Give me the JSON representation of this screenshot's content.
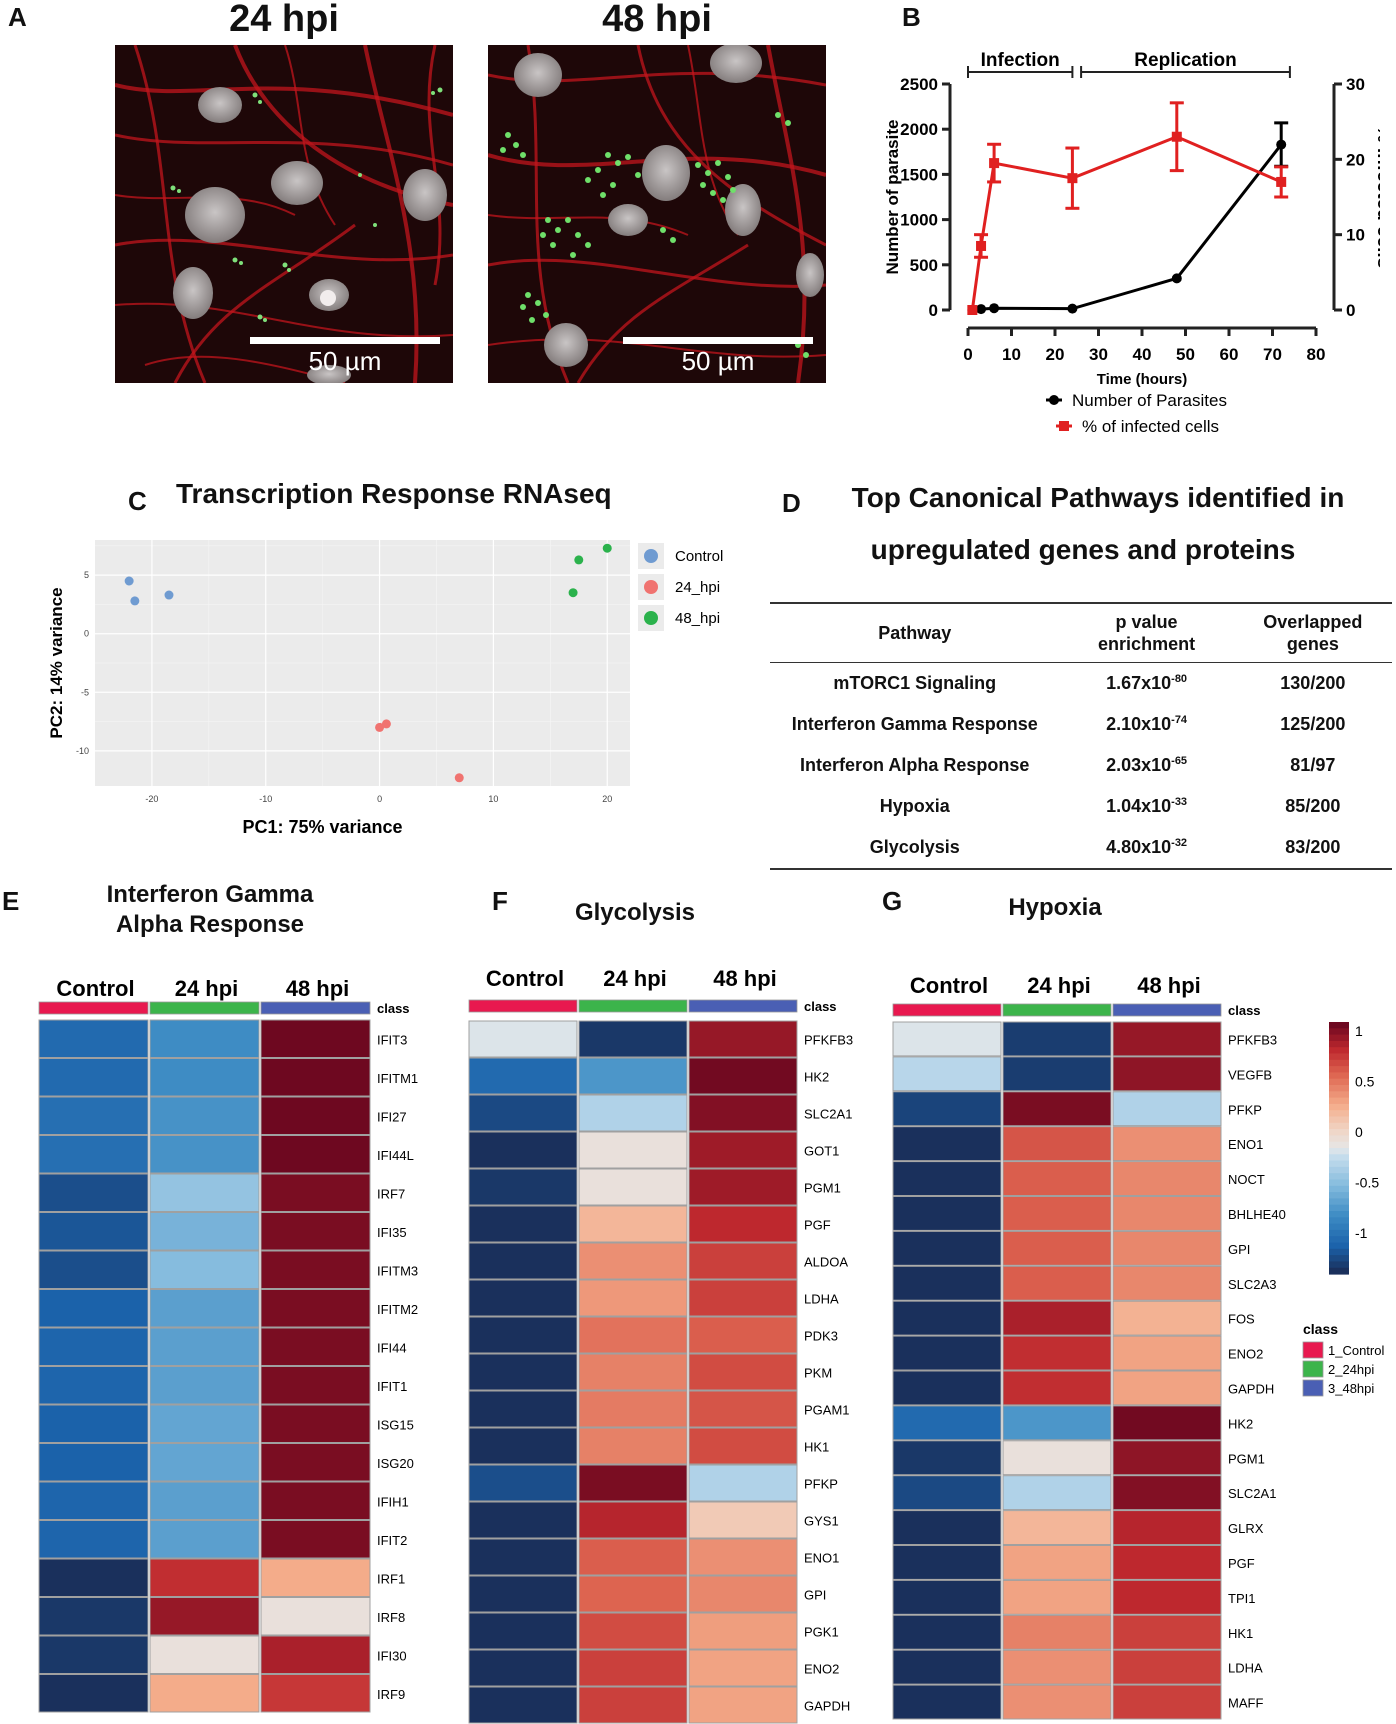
{
  "panel_labels": {
    "A": "A",
    "B": "B",
    "C": "C",
    "D": "D",
    "E": "E",
    "F": "F",
    "G": "G"
  },
  "panelA": {
    "images": [
      {
        "title": "24 hpi",
        "scale_label": "50 µm"
      },
      {
        "title": "48 hpi",
        "scale_label": "50 µm"
      }
    ]
  },
  "colors": {
    "parasites": "#000000",
    "infected": "#e02020",
    "control": "#e8194f",
    "hpi24": "#3cb44b",
    "hpi48": "#4a5fb4",
    "pca_control": "#6f9bd1",
    "pca_24": "#f07370",
    "pca_48": "#2bb24c"
  },
  "chart_data": [
    {
      "id": "B",
      "type": "line",
      "brackets": [
        "Infection",
        "Replication"
      ],
      "xlabel": "Time (hours)",
      "ylabel": "Number of parasite",
      "y2label": "% infected cells",
      "xlim": [
        0,
        80
      ],
      "ylim": [
        0,
        2500
      ],
      "y2lim": [
        0,
        30
      ],
      "xticks": [
        0,
        10,
        20,
        30,
        40,
        50,
        60,
        70,
        80
      ],
      "yticks": [
        0,
        500,
        1000,
        1500,
        2000,
        2500
      ],
      "y2ticks": [
        0,
        10,
        20,
        30
      ],
      "series": [
        {
          "name": "Number of Parasites",
          "axis": "left",
          "x": [
            1,
            3,
            6,
            24,
            48,
            72
          ],
          "values": [
            0,
            10,
            20,
            15,
            350,
            1830
          ],
          "errors": [
            0,
            0,
            0,
            0,
            0,
            240
          ]
        },
        {
          "name": "% of infected cells",
          "axis": "right",
          "x": [
            1,
            3,
            6,
            24,
            48,
            72
          ],
          "values": [
            0,
            8.5,
            19.5,
            17.5,
            23,
            17
          ],
          "errors": [
            0,
            1.5,
            2.5,
            4,
            4.5,
            2
          ]
        }
      ]
    },
    {
      "id": "C",
      "type": "scatter",
      "title": "Transcription Response RNAseq",
      "xlabel": "PC1: 75% variance",
      "ylabel": "PC2: 14% variance",
      "xlim": [
        -25,
        22
      ],
      "ylim": [
        -13,
        8
      ],
      "xticks": [
        -20,
        -10,
        0,
        10,
        20
      ],
      "yticks": [
        5,
        0,
        -5,
        -10
      ],
      "legend": [
        "Control",
        "24_hpi",
        "48_hpi"
      ],
      "series": [
        {
          "name": "Control",
          "x": [
            -22,
            -21.5,
            -18.5
          ],
          "y": [
            4.5,
            2.8,
            3.3
          ]
        },
        {
          "name": "24_hpi",
          "x": [
            0,
            0.6,
            7
          ],
          "y": [
            -8,
            -7.7,
            -12.3
          ]
        },
        {
          "name": "48_hpi",
          "x": [
            17,
            17.5,
            20
          ],
          "y": [
            3.5,
            6.3,
            7.3
          ]
        }
      ]
    },
    {
      "id": "E",
      "type": "heatmap",
      "title_line1": "Interferon Gamma",
      "title_line2": "Alpha Response",
      "columns": [
        "Control",
        "24 hpi",
        "48 hpi"
      ],
      "class_label": "class",
      "rows": [
        "IFIT3",
        "IFITM1",
        "IFI27",
        "IFI44L",
        "IRF7",
        "IFI35",
        "IFITM3",
        "IFITM2",
        "IFI44",
        "IFIT1",
        "ISG15",
        "ISG20",
        "IFIH1",
        "IFIT2",
        "IRF1",
        "IRF8",
        "IFI30",
        "IRF9"
      ],
      "values": [
        [
          -0.75,
          -0.55,
          1
        ],
        [
          -0.75,
          -0.55,
          1
        ],
        [
          -0.72,
          -0.52,
          1
        ],
        [
          -0.72,
          -0.52,
          1
        ],
        [
          -0.88,
          -0.25,
          0.97
        ],
        [
          -0.85,
          -0.35,
          0.97
        ],
        [
          -0.88,
          -0.3,
          0.97
        ],
        [
          -0.8,
          -0.45,
          0.97
        ],
        [
          -0.78,
          -0.45,
          0.97
        ],
        [
          -0.78,
          -0.45,
          0.97
        ],
        [
          -0.8,
          -0.42,
          0.97
        ],
        [
          -0.8,
          -0.42,
          0.97
        ],
        [
          -0.78,
          -0.45,
          0.97
        ],
        [
          -0.78,
          -0.45,
          0.97
        ],
        [
          -1,
          0.78,
          0.35
        ],
        [
          -0.97,
          0.9,
          0.05
        ],
        [
          -0.97,
          0.05,
          0.85
        ],
        [
          -1,
          0.35,
          0.75
        ]
      ]
    },
    {
      "id": "F",
      "type": "heatmap",
      "title": "Glycolysis",
      "columns": [
        "Control",
        "24 hpi",
        "48 hpi"
      ],
      "class_label": "class",
      "rows": [
        "PFKFB3",
        "HK2",
        "SLC2A1",
        "GOT1",
        "PGM1",
        "PGF",
        "ALDOA",
        "LDHA",
        "PDK3",
        "PKM",
        "PGAM1",
        "HK1",
        "PFKP",
        "GYS1",
        "ENO1",
        "GPI",
        "PGK1",
        "ENO2",
        "GAPDH"
      ],
      "values": [
        [
          -0.02,
          -0.97,
          0.9
        ],
        [
          -0.75,
          -0.5,
          0.99
        ],
        [
          -0.9,
          -0.15,
          0.95
        ],
        [
          -1,
          0.05,
          0.88
        ],
        [
          -0.97,
          0.05,
          0.88
        ],
        [
          -1,
          0.3,
          0.8
        ],
        [
          -1,
          0.45,
          0.72
        ],
        [
          -1,
          0.42,
          0.72
        ],
        [
          -1,
          0.55,
          0.62
        ],
        [
          -1,
          0.5,
          0.68
        ],
        [
          -1,
          0.52,
          0.65
        ],
        [
          -1,
          0.5,
          0.68
        ],
        [
          -0.88,
          0.97,
          -0.15
        ],
        [
          -1,
          0.82,
          0.2
        ],
        [
          -1,
          0.62,
          0.45
        ],
        [
          -1,
          0.6,
          0.48
        ],
        [
          -1,
          0.68,
          0.4
        ],
        [
          -1,
          0.72,
          0.38
        ],
        [
          -1,
          0.72,
          0.38
        ]
      ]
    },
    {
      "id": "G",
      "type": "heatmap",
      "title": "Hypoxia",
      "columns": [
        "Control",
        "24 hpi",
        "48 hpi"
      ],
      "class_label": "class",
      "rows": [
        "PFKFB3",
        "VEGFB",
        "PFKP",
        "ENO1",
        "NOCT",
        "BHLHE40",
        "GPI",
        "SLC2A3",
        "FOS",
        "ENO2",
        "GAPDH",
        "HK2",
        "PGM1",
        "SLC2A1",
        "GLRX",
        "PGF",
        "TPI1",
        "HK1",
        "LDHA",
        "MAFF"
      ],
      "values": [
        [
          -0.02,
          -0.95,
          0.9
        ],
        [
          -0.12,
          -0.95,
          0.92
        ],
        [
          -0.92,
          0.97,
          -0.15
        ],
        [
          -1,
          0.65,
          0.45
        ],
        [
          -1,
          0.62,
          0.48
        ],
        [
          -1,
          0.62,
          0.48
        ],
        [
          -1,
          0.62,
          0.48
        ],
        [
          -1,
          0.62,
          0.48
        ],
        [
          -1,
          0.85,
          0.32
        ],
        [
          -1,
          0.78,
          0.38
        ],
        [
          -1,
          0.78,
          0.38
        ],
        [
          -0.75,
          -0.5,
          0.99
        ],
        [
          -0.97,
          0.05,
          0.92
        ],
        [
          -0.9,
          -0.15,
          0.95
        ],
        [
          -1,
          0.3,
          0.82
        ],
        [
          -1,
          0.38,
          0.8
        ],
        [
          -1,
          0.38,
          0.8
        ],
        [
          -1,
          0.5,
          0.72
        ],
        [
          -1,
          0.45,
          0.72
        ],
        [
          -1,
          0.45,
          0.72
        ]
      ],
      "colorbar": {
        "ticks": [
          "1",
          "0.5",
          "0",
          "-0.5",
          "-1"
        ],
        "range": [
          -1,
          1
        ]
      },
      "class_legend": {
        "title": "class",
        "items": [
          "1_Control",
          "2_24hpi",
          "3_48hpi"
        ]
      }
    }
  ],
  "panelD": {
    "title_line1": "Top Canonical Pathways identified in",
    "title_line2": "upregulated genes and proteins",
    "headers": [
      "Pathway",
      "p value enrichment",
      "Overlapped genes"
    ],
    "rows": [
      {
        "pathway": "mTORC1 Signaling",
        "p_mantissa": "1.67x10",
        "p_exp": "-80",
        "overlap": "130/200"
      },
      {
        "pathway": "Interferon Gamma Response",
        "p_mantissa": "2.10x10",
        "p_exp": "-74",
        "overlap": "125/200"
      },
      {
        "pathway": "Interferon Alpha Response",
        "p_mantissa": "2.03x10",
        "p_exp": "-65",
        "overlap": "81/97"
      },
      {
        "pathway": "Hypoxia",
        "p_mantissa": "1.04x10",
        "p_exp": "-33",
        "overlap": "85/200"
      },
      {
        "pathway": "Glycolysis",
        "p_mantissa": "4.80x10",
        "p_exp": "-32",
        "overlap": "83/200"
      }
    ]
  }
}
